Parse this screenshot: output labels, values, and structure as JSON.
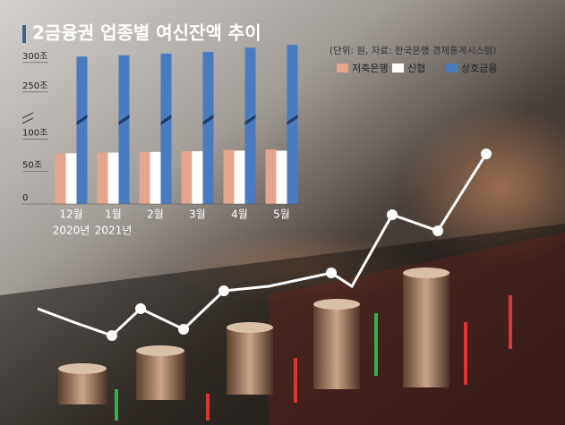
{
  "chart_data": {
    "type": "bar",
    "title": "2금융권 업종별 여신잔액 추이",
    "note": "(단위: 원, 자료: 한국은행 경제통계시스템)",
    "categories": [
      "12월",
      "1월",
      "2월",
      "3월",
      "4월",
      "5월"
    ],
    "category_sublabels": [
      "2020년",
      "2021년",
      null,
      null,
      null,
      null
    ],
    "series": [
      {
        "name": "저축은행",
        "color": "#e3a58b",
        "values": [
          77,
          79,
          80,
          81,
          83,
          84
        ]
      },
      {
        "name": "신협",
        "color": "#ffffff",
        "values": [
          78,
          79,
          80,
          81,
          82,
          82
        ]
      },
      {
        "name": "상호금융",
        "color": "#4a7bc0",
        "values": [
          310,
          312,
          315,
          318,
          325,
          330
        ]
      }
    ],
    "ylim": [
      0,
      330
    ],
    "y_break": [
      110,
      230
    ],
    "yticks": [
      0,
      {
        "value": 50,
        "label": "50조"
      },
      {
        "value": 100,
        "label": "100조"
      },
      {
        "value": 250,
        "label": "250조"
      },
      {
        "value": 300,
        "label": "300조"
      }
    ],
    "grid": false,
    "legend": "top-right"
  }
}
